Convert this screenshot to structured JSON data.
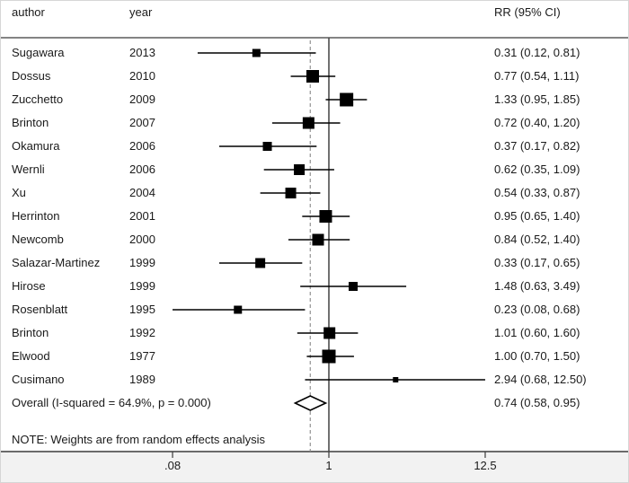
{
  "figure": {
    "columns": {
      "author": "author",
      "year": "year",
      "rr": "RR (95% CI)"
    },
    "note": "NOTE: Weights are from random effects analysis"
  },
  "colors": {
    "marker": "#000000",
    "ci_line": "#000000",
    "null_line": "#4d4d4d",
    "dashed_line": "#8a8a8a",
    "frame_line": "#3a3a3a",
    "axis_strip_bg": "#f2f2f2"
  },
  "chart_data": {
    "type": "forest",
    "title": "",
    "x_axis": {
      "scale": "log",
      "ticks": [
        0.08,
        1,
        12.5
      ],
      "tick_labels": [
        ".08",
        "1",
        "12.5"
      ],
      "null_line": 1,
      "pooled_dashed_line": 0.74
    },
    "studies": [
      {
        "author": "Sugawara",
        "year": "2013",
        "rr": 0.31,
        "lo": 0.12,
        "hi": 0.81,
        "text": "0.31 (0.12, 0.81)",
        "size": 9
      },
      {
        "author": "Dossus",
        "year": "2010",
        "rr": 0.77,
        "lo": 0.54,
        "hi": 1.11,
        "text": "0.77 (0.54, 1.11)",
        "size": 14
      },
      {
        "author": "Zucchetto",
        "year": "2009",
        "rr": 1.33,
        "lo": 0.95,
        "hi": 1.85,
        "text": "1.33 (0.95, 1.85)",
        "size": 15
      },
      {
        "author": "Brinton",
        "year": "2007",
        "rr": 0.72,
        "lo": 0.4,
        "hi": 1.2,
        "text": "0.72 (0.40, 1.20)",
        "size": 13
      },
      {
        "author": "Okamura",
        "year": "2006",
        "rr": 0.37,
        "lo": 0.17,
        "hi": 0.82,
        "text": "0.37 (0.17, 0.82)",
        "size": 10
      },
      {
        "author": "Wernli",
        "year": "2006",
        "rr": 0.62,
        "lo": 0.35,
        "hi": 1.09,
        "text": "0.62 (0.35, 1.09)",
        "size": 12
      },
      {
        "author": "Xu",
        "year": "2004",
        "rr": 0.54,
        "lo": 0.33,
        "hi": 0.87,
        "text": "0.54 (0.33, 0.87)",
        "size": 12
      },
      {
        "author": "Herrinton",
        "year": "2001",
        "rr": 0.95,
        "lo": 0.65,
        "hi": 1.4,
        "text": "0.95 (0.65, 1.40)",
        "size": 14
      },
      {
        "author": "Newcomb",
        "year": "2000",
        "rr": 0.84,
        "lo": 0.52,
        "hi": 1.4,
        "text": "0.84 (0.52, 1.40)",
        "size": 13
      },
      {
        "author": "Salazar-Martinez",
        "year": "1999",
        "rr": 0.33,
        "lo": 0.17,
        "hi": 0.65,
        "text": "0.33 (0.17, 0.65)",
        "size": 11
      },
      {
        "author": "Hirose",
        "year": "1999",
        "rr": 1.48,
        "lo": 0.63,
        "hi": 3.49,
        "text": "1.48 (0.63, 3.49)",
        "size": 10
      },
      {
        "author": "Rosenblatt",
        "year": "1995",
        "rr": 0.23,
        "lo": 0.08,
        "hi": 0.68,
        "text": "0.23 (0.08, 0.68)",
        "size": 9
      },
      {
        "author": "Brinton",
        "year": "1992",
        "rr": 1.01,
        "lo": 0.6,
        "hi": 1.6,
        "text": "1.01 (0.60, 1.60)",
        "size": 13
      },
      {
        "author": "Elwood",
        "year": "1977",
        "rr": 1.0,
        "lo": 0.7,
        "hi": 1.5,
        "text": "1.00 (0.70, 1.50)",
        "size": 15
      },
      {
        "author": "Cusimano",
        "year": "1989",
        "rr": 2.94,
        "lo": 0.68,
        "hi": 12.5,
        "text": "2.94 (0.68, 12.50)",
        "size": 6
      }
    ],
    "overall": {
      "label": "Overall  (I-squared = 64.9%, p = 0.000)",
      "rr": 0.74,
      "lo": 0.58,
      "hi": 0.95,
      "text": "0.74 (0.58, 0.95)"
    }
  }
}
